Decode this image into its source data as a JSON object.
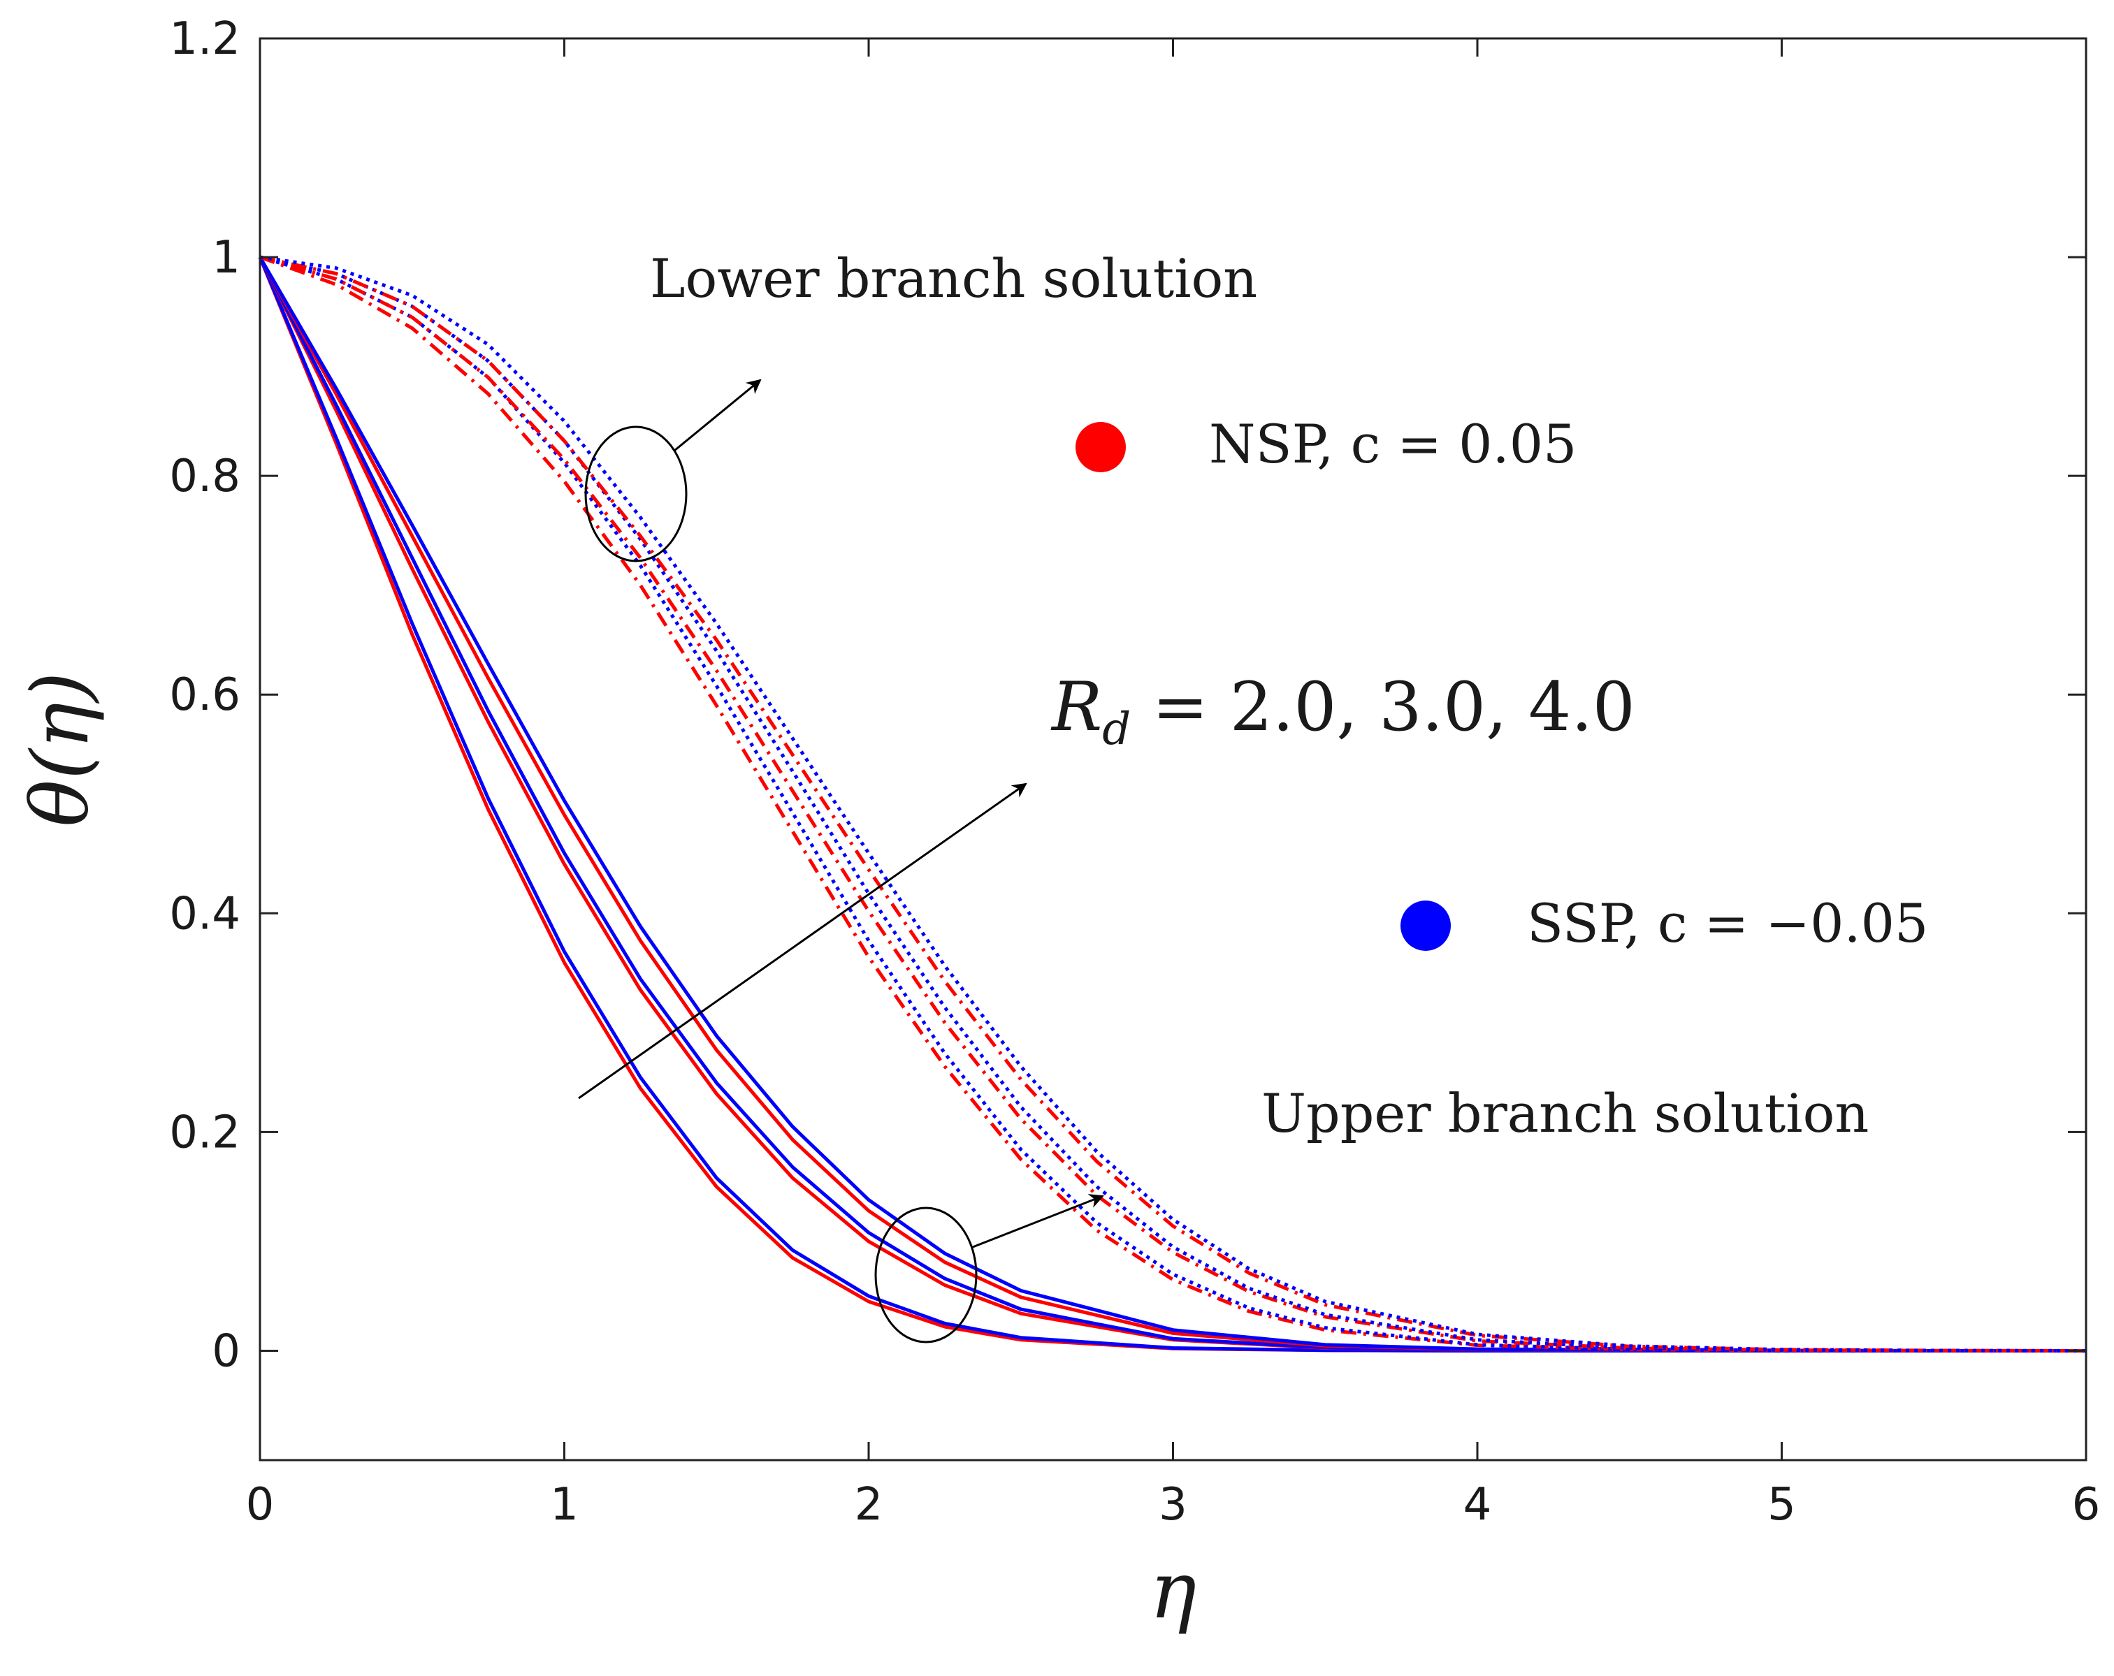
{
  "chart_data": {
    "type": "line",
    "xlabel": "η",
    "ylabel": "θ(η)",
    "xlim": [
      0,
      6
    ],
    "ylim": [
      -0.1,
      1.2
    ],
    "x_ticks": [
      0,
      1,
      2,
      3,
      4,
      5,
      6
    ],
    "y_ticks": [
      0,
      0.2,
      0.4,
      0.6,
      0.8,
      1,
      1.2
    ],
    "x_tick_labels": [
      "0",
      "1",
      "2",
      "3",
      "4",
      "5",
      "6"
    ],
    "y_tick_labels": [
      "0",
      "0.2",
      "0.4",
      "0.6",
      "0.8",
      "1",
      "1.2"
    ],
    "grid": false,
    "legend": [
      {
        "label": "NSP, c = 0.05",
        "color": "#ff0000",
        "marker": "filled-circle"
      },
      {
        "label": "SSP, c = −0.05",
        "color": "#0000ff",
        "marker": "filled-circle"
      }
    ],
    "annotations": {
      "lower_branch": "Lower branch solution",
      "upper_branch": "Upper branch solution",
      "parameter": "R_d = 2.0, 3.0, 4.0",
      "parameter_symbol": "R",
      "parameter_subscript": "d",
      "parameter_values": " = 2.0, 3.0, 4.0"
    },
    "series": [
      {
        "name": "Upper NSP Rd=2.0",
        "branch": "upper",
        "Rd": 2.0,
        "color": "#ff0000",
        "dash": "solid",
        "x": [
          0,
          0.25,
          0.5,
          0.75,
          1.0,
          1.25,
          1.5,
          1.75,
          2.0,
          2.25,
          2.5,
          3.0,
          3.5,
          4.0,
          5.0,
          6.0
        ],
        "y": [
          1,
          0.83,
          0.655,
          0.495,
          0.355,
          0.24,
          0.15,
          0.085,
          0.045,
          0.022,
          0.01,
          0.002,
          0.0004,
          0,
          0,
          0
        ]
      },
      {
        "name": "Upper SSP Rd=2.0",
        "branch": "upper",
        "Rd": 2.0,
        "color": "#0000ff",
        "dash": "solid",
        "x": [
          0,
          0.25,
          0.5,
          0.75,
          1.0,
          1.25,
          1.5,
          1.75,
          2.0,
          2.25,
          2.5,
          3.0,
          3.5,
          4.0,
          5.0,
          6.0
        ],
        "y": [
          1,
          0.835,
          0.665,
          0.505,
          0.365,
          0.25,
          0.158,
          0.092,
          0.05,
          0.025,
          0.012,
          0.0025,
          0.0005,
          0,
          0,
          0
        ]
      },
      {
        "name": "Upper NSP Rd=3.0",
        "branch": "upper",
        "Rd": 3.0,
        "color": "#ff0000",
        "dash": "solid",
        "x": [
          0,
          0.25,
          0.5,
          0.75,
          1.0,
          1.25,
          1.5,
          1.75,
          2.0,
          2.25,
          2.5,
          3.0,
          3.5,
          4.0,
          5.0,
          6.0
        ],
        "y": [
          1,
          0.86,
          0.715,
          0.575,
          0.445,
          0.33,
          0.235,
          0.158,
          0.1,
          0.06,
          0.034,
          0.01,
          0.0025,
          0.0006,
          0,
          0
        ]
      },
      {
        "name": "Upper SSP Rd=3.0",
        "branch": "upper",
        "Rd": 3.0,
        "color": "#0000ff",
        "dash": "solid",
        "x": [
          0,
          0.25,
          0.5,
          0.75,
          1.0,
          1.25,
          1.5,
          1.75,
          2.0,
          2.25,
          2.5,
          3.0,
          3.5,
          4.0,
          5.0,
          6.0
        ],
        "y": [
          1,
          0.865,
          0.725,
          0.585,
          0.455,
          0.34,
          0.245,
          0.168,
          0.108,
          0.066,
          0.038,
          0.011,
          0.003,
          0.0007,
          0,
          0
        ]
      },
      {
        "name": "Upper NSP Rd=4.0",
        "branch": "upper",
        "Rd": 4.0,
        "color": "#ff0000",
        "dash": "solid",
        "x": [
          0,
          0.25,
          0.5,
          0.75,
          1.0,
          1.25,
          1.5,
          1.75,
          2.0,
          2.25,
          2.5,
          3.0,
          3.5,
          4.0,
          5.0,
          6.0
        ],
        "y": [
          1,
          0.875,
          0.745,
          0.615,
          0.49,
          0.375,
          0.275,
          0.193,
          0.128,
          0.081,
          0.049,
          0.016,
          0.0045,
          0.0012,
          0,
          0
        ]
      },
      {
        "name": "Upper SSP Rd=4.0",
        "branch": "upper",
        "Rd": 4.0,
        "color": "#0000ff",
        "dash": "solid",
        "x": [
          0,
          0.25,
          0.5,
          0.75,
          1.0,
          1.25,
          1.5,
          1.75,
          2.0,
          2.25,
          2.5,
          3.0,
          3.5,
          4.0,
          5.0,
          6.0
        ],
        "y": [
          1,
          0.88,
          0.755,
          0.628,
          0.503,
          0.388,
          0.288,
          0.205,
          0.138,
          0.089,
          0.055,
          0.019,
          0.0055,
          0.0015,
          0,
          0
        ]
      },
      {
        "name": "Lower NSP Rd=2.0",
        "branch": "lower",
        "Rd": 2.0,
        "color": "#ff0000",
        "dash": "dashdot",
        "x": [
          0,
          0.25,
          0.5,
          0.75,
          1.0,
          1.25,
          1.5,
          1.75,
          2.0,
          2.25,
          2.5,
          2.75,
          3.0,
          3.25,
          3.5,
          4.0,
          4.5,
          5.0,
          5.5,
          6.0
        ],
        "y": [
          1,
          0.975,
          0.935,
          0.875,
          0.795,
          0.7,
          0.59,
          0.475,
          0.36,
          0.26,
          0.175,
          0.11,
          0.065,
          0.036,
          0.019,
          0.005,
          0.0012,
          0.0003,
          0,
          0
        ]
      },
      {
        "name": "Lower SSP Rd=2.0",
        "branch": "lower",
        "Rd": 2.0,
        "color": "#0000ff",
        "dash": "dotted",
        "x": [
          0,
          0.25,
          0.5,
          0.75,
          1.0,
          1.25,
          1.5,
          1.75,
          2.0,
          2.25,
          2.5,
          2.75,
          3.0,
          3.25,
          3.5,
          4.0,
          4.5,
          5.0,
          5.5,
          6.0
        ],
        "y": [
          1,
          0.98,
          0.945,
          0.89,
          0.812,
          0.718,
          0.608,
          0.492,
          0.375,
          0.272,
          0.184,
          0.117,
          0.07,
          0.039,
          0.021,
          0.0055,
          0.0013,
          0.0003,
          0,
          0
        ]
      },
      {
        "name": "Lower NSP Rd=3.0",
        "branch": "lower",
        "Rd": 3.0,
        "color": "#ff0000",
        "dash": "dashdot",
        "x": [
          0,
          0.25,
          0.5,
          0.75,
          1.0,
          1.25,
          1.5,
          1.75,
          2.0,
          2.25,
          2.5,
          2.75,
          3.0,
          3.25,
          3.5,
          4.0,
          4.5,
          5.0,
          5.5,
          6.0
        ],
        "y": [
          1,
          0.98,
          0.945,
          0.89,
          0.815,
          0.725,
          0.622,
          0.512,
          0.402,
          0.3,
          0.212,
          0.142,
          0.09,
          0.054,
          0.031,
          0.009,
          0.0024,
          0.0006,
          0.0001,
          0
        ]
      },
      {
        "name": "Lower SSP Rd=3.0",
        "branch": "lower",
        "Rd": 3.0,
        "color": "#0000ff",
        "dash": "dotted",
        "x": [
          0,
          0.25,
          0.5,
          0.75,
          1.0,
          1.25,
          1.5,
          1.75,
          2.0,
          2.25,
          2.5,
          2.75,
          3.0,
          3.25,
          3.5,
          4.0,
          4.5,
          5.0,
          5.5,
          6.0
        ],
        "y": [
          1,
          0.985,
          0.955,
          0.905,
          0.832,
          0.742,
          0.64,
          0.53,
          0.418,
          0.314,
          0.223,
          0.15,
          0.095,
          0.057,
          0.033,
          0.01,
          0.0026,
          0.0006,
          0.0001,
          0
        ]
      },
      {
        "name": "Lower NSP Rd=4.0",
        "branch": "lower",
        "Rd": 4.0,
        "color": "#ff0000",
        "dash": "dashdot",
        "x": [
          0,
          0.25,
          0.5,
          0.75,
          1.0,
          1.25,
          1.5,
          1.75,
          2.0,
          2.25,
          2.5,
          2.75,
          3.0,
          3.25,
          3.5,
          4.0,
          4.5,
          5.0,
          5.5,
          6.0
        ],
        "y": [
          1,
          0.985,
          0.955,
          0.905,
          0.832,
          0.745,
          0.65,
          0.545,
          0.44,
          0.338,
          0.248,
          0.173,
          0.114,
          0.071,
          0.042,
          0.014,
          0.004,
          0.001,
          0.0002,
          0
        ]
      },
      {
        "name": "Lower SSP Rd=4.0",
        "branch": "lower",
        "Rd": 4.0,
        "color": "#0000ff",
        "dash": "dotted",
        "x": [
          0,
          0.25,
          0.5,
          0.75,
          1.0,
          1.25,
          1.5,
          1.75,
          2.0,
          2.25,
          2.5,
          2.75,
          3.0,
          3.25,
          3.5,
          4.0,
          4.5,
          5.0,
          5.5,
          6.0
        ],
        "y": [
          1,
          0.99,
          0.965,
          0.92,
          0.85,
          0.762,
          0.665,
          0.56,
          0.455,
          0.352,
          0.26,
          0.182,
          0.12,
          0.075,
          0.045,
          0.015,
          0.0043,
          0.0011,
          0.0002,
          0
        ]
      }
    ]
  }
}
